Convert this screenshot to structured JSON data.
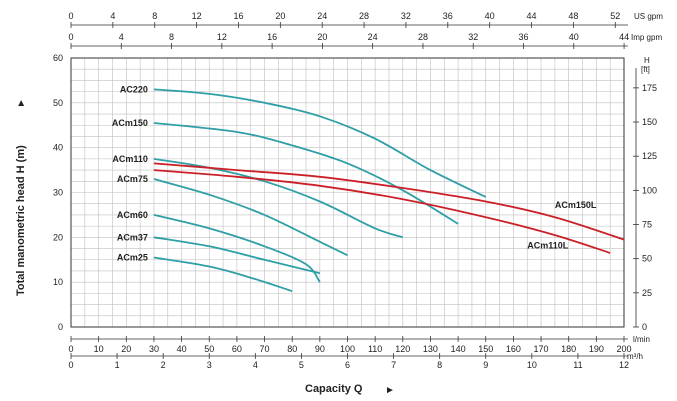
{
  "chart_data": {
    "type": "line",
    "xlabel": "Capacity Q",
    "ylabel": "Total manometric head H (m)",
    "xlim": [
      0,
      200
    ],
    "ylim": [
      0,
      60
    ],
    "grid": true,
    "x_unit": "l/min",
    "x_ticks": [
      "0",
      "10",
      "20",
      "30",
      "40",
      "50",
      "60",
      "70",
      "80",
      "90",
      "100",
      "110",
      "120",
      "130",
      "140",
      "150",
      "160",
      "170",
      "180",
      "190",
      "200"
    ],
    "y_ticks": [
      "0",
      "10",
      "20",
      "30",
      "40",
      "50",
      "60"
    ],
    "top_axis_us": {
      "unit": "US gpm",
      "ticks": [
        "0",
        "4",
        "8",
        "12",
        "16",
        "20",
        "24",
        "28",
        "32",
        "36",
        "40",
        "44",
        "48",
        "52"
      ]
    },
    "top_axis_imp": {
      "unit": "Imp gpm",
      "ticks": [
        "0",
        "4",
        "8",
        "12",
        "16",
        "20",
        "24",
        "28",
        "32",
        "36",
        "40",
        "44"
      ]
    },
    "bottom_axis_m3h": {
      "unit": "m³/h",
      "ticks": [
        "0",
        "1",
        "2",
        "3",
        "4",
        "5",
        "6",
        "7",
        "8",
        "9",
        "10",
        "11",
        "12"
      ]
    },
    "right_axis_ft": {
      "unit": "H\n[ft]",
      "ticks": [
        "0",
        "25",
        "50",
        "75",
        "100",
        "125",
        "150",
        "175"
      ]
    },
    "colors": {
      "teal": "#2e9fa6",
      "red": "#cc2028",
      "grid": "#bfbfbf"
    },
    "series": [
      {
        "name": "AC220",
        "color": "#2e9fa6",
        "points": [
          [
            30,
            53
          ],
          [
            50,
            52
          ],
          [
            70,
            50
          ],
          [
            90,
            47
          ],
          [
            110,
            42
          ],
          [
            130,
            35
          ],
          [
            150,
            29
          ]
        ]
      },
      {
        "name": "ACm150",
        "color": "#2e9fa6",
        "points": [
          [
            30,
            45.5
          ],
          [
            60,
            43.5
          ],
          [
            80,
            40.5
          ],
          [
            100,
            36.5
          ],
          [
            120,
            30.5
          ],
          [
            140,
            23
          ]
        ]
      },
      {
        "name": "ACm110",
        "color": "#2e9fa6",
        "points": [
          [
            30,
            37.5
          ],
          [
            50,
            35.5
          ],
          [
            70,
            32.5
          ],
          [
            90,
            28
          ],
          [
            110,
            22
          ],
          [
            120,
            20
          ]
        ]
      },
      {
        "name": "ACm75",
        "color": "#2e9fa6",
        "points": [
          [
            30,
            33
          ],
          [
            50,
            29.5
          ],
          [
            70,
            25
          ],
          [
            90,
            19
          ],
          [
            100,
            16
          ]
        ]
      },
      {
        "name": "ACm60",
        "color": "#2e9fa6",
        "points": [
          [
            30,
            25
          ],
          [
            50,
            22
          ],
          [
            70,
            18
          ],
          [
            85,
            14
          ],
          [
            90,
            10
          ]
        ]
      },
      {
        "name": "ACm37",
        "color": "#2e9fa6",
        "points": [
          [
            30,
            20
          ],
          [
            50,
            18
          ],
          [
            70,
            15
          ],
          [
            90,
            12
          ]
        ]
      },
      {
        "name": "ACm25",
        "color": "#2e9fa6",
        "points": [
          [
            30,
            15.5
          ],
          [
            50,
            13.5
          ],
          [
            65,
            11
          ],
          [
            80,
            8
          ]
        ]
      },
      {
        "name": "ACm150L",
        "color": "#cc2028",
        "points": [
          [
            30,
            36.5
          ],
          [
            60,
            35
          ],
          [
            90,
            33.5
          ],
          [
            120,
            31
          ],
          [
            150,
            28
          ],
          [
            175,
            24.5
          ],
          [
            200,
            19.5
          ]
        ]
      },
      {
        "name": "ACm110L",
        "color": "#cc2028",
        "points": [
          [
            30,
            35
          ],
          [
            60,
            33.5
          ],
          [
            90,
            31.5
          ],
          [
            120,
            28.5
          ],
          [
            150,
            24.5
          ],
          [
            175,
            20.5
          ],
          [
            195,
            16.5
          ]
        ]
      }
    ]
  }
}
